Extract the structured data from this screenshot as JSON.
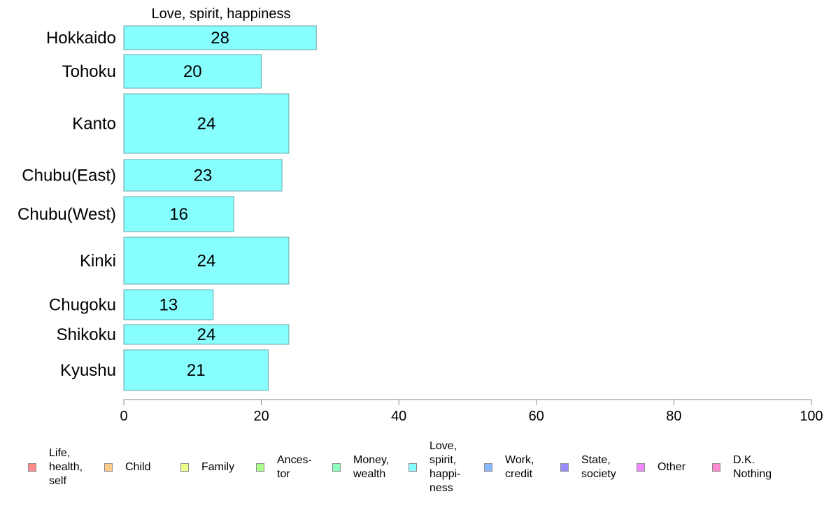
{
  "chart_data": {
    "type": "bar",
    "orientation": "horizontal",
    "title": "Love, spirit, happiness",
    "categories": [
      "Hokkaido",
      "Tohoku",
      "Kanto",
      "Chubu(East)",
      "Chubu(West)",
      "Kinki",
      "Chugoku",
      "Shikoku",
      "Kyushu"
    ],
    "values": [
      28,
      20,
      24,
      23,
      16,
      24,
      13,
      24,
      21
    ],
    "data_labels": [
      "28",
      "20",
      "24",
      "23",
      "16",
      "24",
      "13",
      "24",
      "21"
    ],
    "xlim": [
      0,
      100
    ],
    "xticks": [
      0,
      20,
      40,
      60,
      80,
      100
    ],
    "xtick_labels": [
      "0",
      "20",
      "40",
      "60",
      "80",
      "100"
    ],
    "grid": false,
    "bar_color": "#88ffff",
    "bar_edge_color": "#6aa7a7",
    "legend_position": "bottom",
    "legend": [
      {
        "label": "Life,\nhealth,\nself",
        "color": "#ff8a8a"
      },
      {
        "label": "Child",
        "color": "#ffc98a"
      },
      {
        "label": "Family",
        "color": "#eeff8a"
      },
      {
        "label": "Ances-\ntor",
        "color": "#aaff8a"
      },
      {
        "label": "Money,\nwealth",
        "color": "#8affbb"
      },
      {
        "label": "Love,\nspirit,\nhappi-\nness",
        "color": "#88ffff"
      },
      {
        "label": "Work,\ncredit",
        "color": "#8ab8ff"
      },
      {
        "label": "State,\nsociety",
        "color": "#9a8aff"
      },
      {
        "label": "Other",
        "color": "#ee8aff"
      },
      {
        "label": "D.K.\nNothing",
        "color": "#ff8ad0"
      }
    ]
  }
}
